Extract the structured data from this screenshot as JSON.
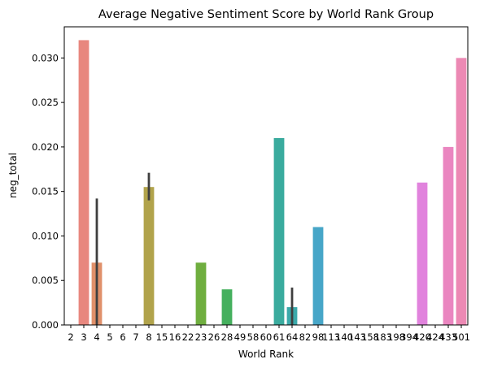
{
  "chart_data": {
    "type": "bar",
    "title": "Average Negative Sentiment Score by World Rank Group",
    "xlabel": "World Rank",
    "ylabel": "neg_total",
    "ylim": [
      0,
      0.0335
    ],
    "yticks": [
      "0.000",
      "0.005",
      "0.010",
      "0.015",
      "0.020",
      "0.025",
      "0.030"
    ],
    "ytick_values": [
      0,
      0.005,
      0.01,
      0.015,
      0.02,
      0.025,
      0.03
    ],
    "grid": false,
    "categories": [
      "2",
      "3",
      "4",
      "5",
      "6",
      "7",
      "8",
      "15",
      "16",
      "22",
      "23",
      "26",
      "28",
      "49",
      "58",
      "60",
      "61",
      "64",
      "82",
      "98",
      "113",
      "140",
      "143",
      "158",
      "183",
      "198",
      "394",
      "420",
      "424",
      "433",
      "501"
    ],
    "values": [
      0,
      0.032,
      0.007,
      0,
      0,
      0,
      0.0155,
      0,
      0,
      0,
      0.007,
      0,
      0.004,
      0,
      0,
      0,
      0.021,
      0.002,
      0,
      0.011,
      0,
      0,
      0,
      0,
      0,
      0,
      0,
      0.016,
      0,
      0.02,
      0.03
    ],
    "error_bars": [
      null,
      null,
      [
        0,
        0.0142
      ],
      null,
      null,
      null,
      [
        0.014,
        0.0171
      ],
      null,
      null,
      null,
      null,
      null,
      null,
      null,
      null,
      null,
      null,
      [
        0,
        0.0042
      ],
      null,
      null,
      null,
      null,
      null,
      null,
      null,
      null,
      null,
      null,
      null,
      null,
      null
    ],
    "colors": [
      "#e8877e",
      "#e8877e",
      "#e0906a",
      "#d99a55",
      "#cfa14a",
      "#c4a646",
      "#b1a34b",
      "#a4a646",
      "#95a843",
      "#7ea93f",
      "#6fae3f",
      "#58ad4e",
      "#45b05e",
      "#3cae73",
      "#38ad84",
      "#38ac94",
      "#3aab9e",
      "#3ba9aa",
      "#3ba6b8",
      "#47a6c8",
      "#5aa0d8",
      "#7a98e4",
      "#958fe8",
      "#ad85e8",
      "#c07ae6",
      "#d474e3",
      "#dc7ee0",
      "#e183dd",
      "#e885c8",
      "#ea86c0",
      "#ec89b4"
    ]
  }
}
